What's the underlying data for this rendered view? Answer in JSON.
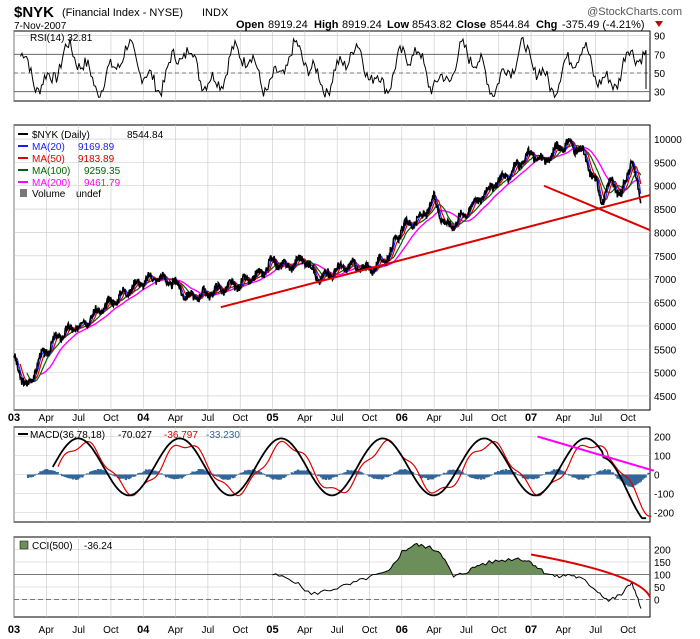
{
  "header": {
    "symbol": "$NYK",
    "description": "(Financial Index - NYSE)",
    "exchange": "INDX",
    "date": "7-Nov-2007",
    "watermark": "@StockCharts.com",
    "open_label": "Open",
    "open": "8919.24",
    "high_label": "High",
    "high": "8919.24",
    "low_label": "Low",
    "low": "8543.82",
    "close_label": "Close",
    "close": "8544.84",
    "chg_label": "Chg",
    "chg": "-375.49 (-4.21%)"
  },
  "colors": {
    "price": "#000000",
    "ma20": "#1a1aff",
    "ma50": "#dd0000",
    "ma100": "#006400",
    "ma200": "#ff00ff",
    "trend": "#dd0000",
    "macd_hist": "#336699",
    "cci_fill": "#6b8e5a",
    "rsi_fill": "#6b8e5a",
    "grid": "#c8c8c8",
    "down_arrow": "#cc0000"
  },
  "chart_data": [
    {
      "type": "line",
      "panel": "rsi",
      "label": "RSI(14) 32.81",
      "ylim": [
        20,
        95
      ],
      "ticks": [
        90,
        70,
        50,
        30
      ],
      "reference_lines": [
        70,
        50,
        30
      ],
      "series": [
        {
          "name": "RSI(14)",
          "last": 32.81
        }
      ]
    },
    {
      "type": "line",
      "panel": "price",
      "title": "$NYK (Financial Index - NYSE) INDX",
      "ylim": [
        4200,
        10300
      ],
      "ticks": [
        10000,
        9500,
        9000,
        8500,
        8000,
        7500,
        7000,
        6500,
        6000,
        5500,
        5000,
        4500
      ],
      "x": [
        2003.0,
        2003.1,
        2003.2,
        2003.35,
        2003.5,
        2003.65,
        2003.8,
        2003.95,
        2004.1,
        2004.25,
        2004.35,
        2004.5,
        2004.6,
        2004.75,
        2004.9,
        2005.0,
        2005.1,
        2005.25,
        2005.35,
        2005.5,
        2005.6,
        2005.75,
        2005.9,
        2006.0,
        2006.15,
        2006.25,
        2006.35,
        2006.45,
        2006.55,
        2006.7,
        2006.85,
        2007.0,
        2007.1,
        2007.2,
        2007.3,
        2007.4,
        2007.48,
        2007.55,
        2007.62,
        2007.7,
        2007.78,
        2007.85
      ],
      "values": [
        5300,
        4650,
        5300,
        5800,
        6000,
        6300,
        6600,
        6900,
        7050,
        6900,
        6600,
        6700,
        6800,
        6900,
        7100,
        7400,
        7250,
        7450,
        7000,
        7200,
        7300,
        7200,
        7500,
        8100,
        8300,
        8700,
        8100,
        8300,
        8600,
        9000,
        9300,
        9700,
        9500,
        9800,
        9900,
        9700,
        9200,
        8700,
        9100,
        8800,
        9600,
        8545
      ],
      "series": [
        {
          "name": "$NYK (Daily)",
          "last": "8544.84"
        },
        {
          "name": "MA(20)",
          "last": "9169.89"
        },
        {
          "name": "MA(50)",
          "last": "9183.89"
        },
        {
          "name": "MA(100)",
          "last": "9259.35"
        },
        {
          "name": "MA(200)",
          "last": "9461.79"
        },
        {
          "name": "Volume",
          "last": "undef"
        }
      ],
      "trend_lines": [
        {
          "from": [
            2004.6,
            6400
          ],
          "to": [
            2007.92,
            8800
          ]
        },
        {
          "from": [
            2007.1,
            9000
          ],
          "to": [
            2007.92,
            8050
          ]
        }
      ],
      "x_tick_labels": [
        "03",
        "Apr",
        "Jul",
        "Oct",
        "04",
        "Apr",
        "Jul",
        "Oct",
        "05",
        "Apr",
        "Jul",
        "Oct",
        "06",
        "Apr",
        "Jul",
        "Oct",
        "07",
        "Apr",
        "Jul",
        "Oct"
      ]
    },
    {
      "type": "line",
      "panel": "macd",
      "label": "MACD(36,78,18)",
      "ylim": [
        -250,
        250
      ],
      "ticks": [
        200,
        100,
        0,
        -100,
        -200
      ],
      "series": [
        {
          "name": "MACD",
          "last": "-70.027"
        },
        {
          "name": "Signal",
          "last": "-36.797"
        },
        {
          "name": "Histogram",
          "last": "-33.230"
        }
      ],
      "trend_lines": [
        {
          "from": [
            2007.05,
            200
          ],
          "to": [
            2007.95,
            20
          ]
        }
      ]
    },
    {
      "type": "area",
      "panel": "cci",
      "label": "CCI(500)",
      "ylim": [
        -70,
        250
      ],
      "ticks": [
        200,
        150,
        100,
        50,
        0
      ],
      "reference_lines": [
        100,
        0
      ],
      "x": [
        2005.0,
        2005.15,
        2005.3,
        2005.45,
        2005.6,
        2005.75,
        2005.9,
        2006.0,
        2006.1,
        2006.2,
        2006.3,
        2006.4,
        2006.5,
        2006.6,
        2006.75,
        2006.9,
        2007.0,
        2007.1,
        2007.2,
        2007.3,
        2007.4,
        2007.5,
        2007.6,
        2007.7,
        2007.78,
        2007.85
      ],
      "values": [
        100,
        80,
        20,
        40,
        60,
        90,
        110,
        190,
        220,
        210,
        190,
        90,
        110,
        140,
        155,
        165,
        150,
        110,
        90,
        100,
        80,
        40,
        -5,
        20,
        70,
        -36.24
      ],
      "series": [
        {
          "name": "CCI(500)",
          "last": "-36.24"
        }
      ],
      "trend_lines": [
        {
          "from": [
            2007.0,
            180
          ],
          "to": [
            2007.92,
            10
          ]
        }
      ],
      "x_tick_labels": [
        "03",
        "Apr",
        "Jul",
        "Oct",
        "04",
        "Apr",
        "Jul",
        "Oct",
        "05",
        "Apr",
        "Jul",
        "Oct",
        "06",
        "Apr",
        "Jul",
        "Oct",
        "07",
        "Apr",
        "Jul",
        "Oct"
      ]
    }
  ]
}
